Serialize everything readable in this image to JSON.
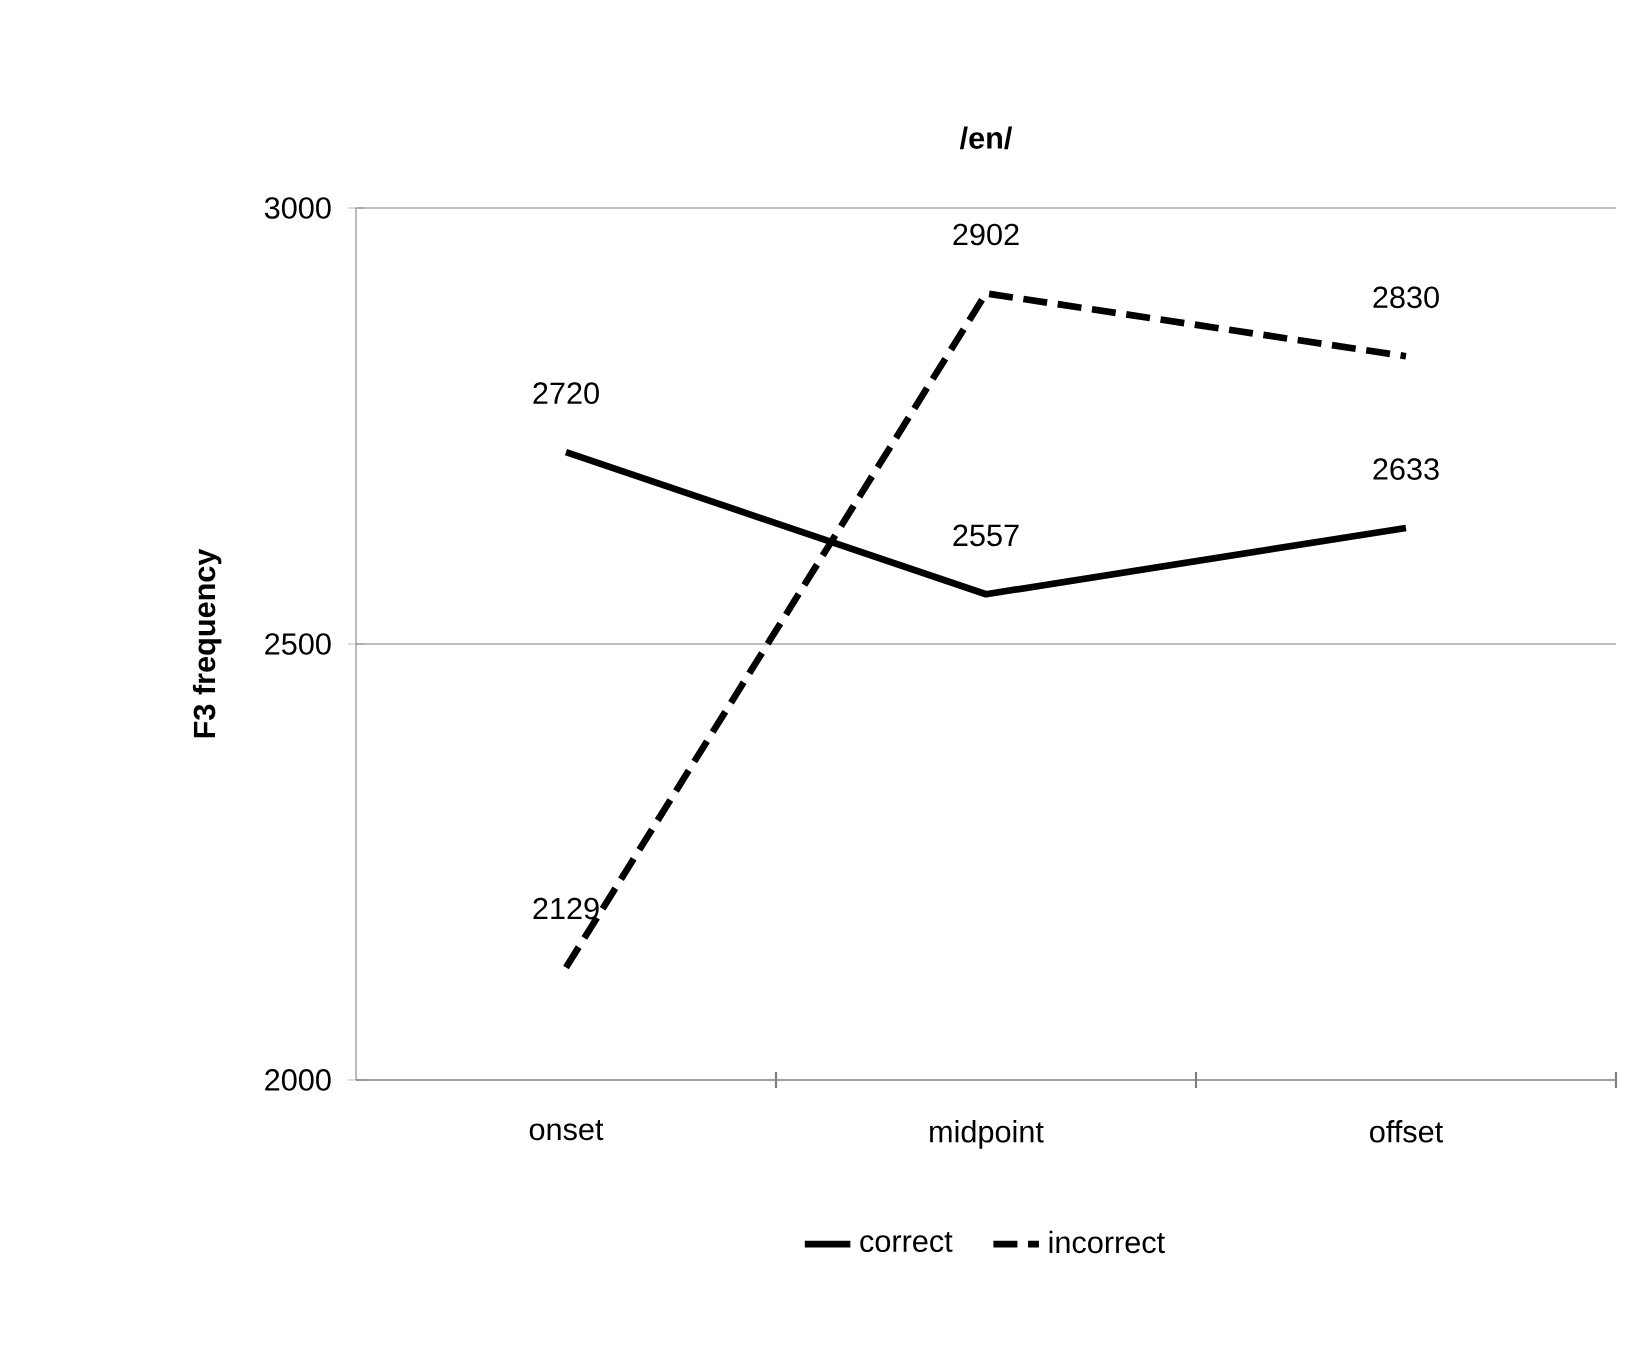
{
  "chart_data": {
    "type": "line",
    "title": "/en/",
    "ylabel": "F3 frequency",
    "categories": [
      "onset",
      "midpoint",
      "offset"
    ],
    "series": [
      {
        "name": "correct",
        "color": "#000000",
        "line_style": "solid",
        "values": [
          2720,
          2557,
          2633
        ]
      },
      {
        "name": "incorrect",
        "color": "#000000",
        "line_style": "dashed",
        "values": [
          2129,
          2902,
          2830
        ]
      }
    ],
    "ylim": [
      2000,
      3000
    ],
    "yticks": [
      2000,
      2500,
      3000
    ],
    "grid": "y",
    "legend": "bottom",
    "data_labels": true,
    "marker": "none"
  }
}
